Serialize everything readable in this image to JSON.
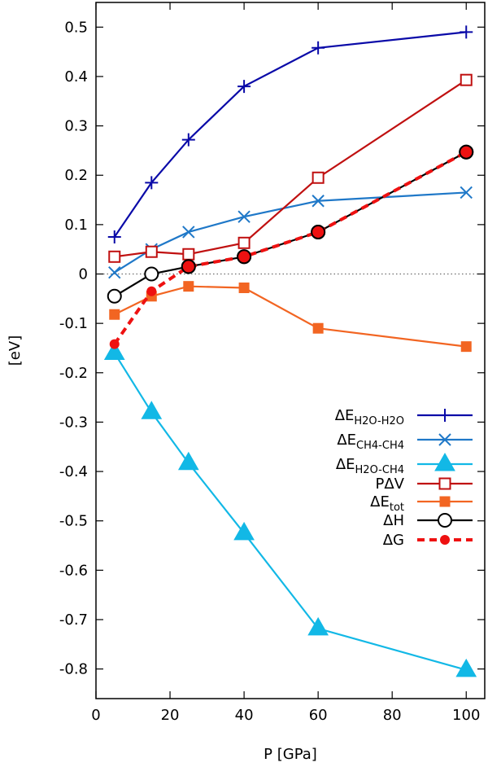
{
  "chart_data": {
    "type": "line",
    "xlabel": "P [GPa]",
    "ylabel": "[eV]",
    "xlim": [
      0,
      105
    ],
    "ylim": [
      -0.86,
      0.55
    ],
    "xticks": [
      0,
      20,
      40,
      60,
      80,
      100
    ],
    "yticks": [
      0.5,
      0.4,
      0.3,
      0.2,
      0.1,
      0,
      -0.1,
      -0.2,
      -0.3,
      -0.4,
      -0.5,
      -0.6,
      -0.7,
      -0.8
    ],
    "xtick_labels": [
      "0",
      "20",
      "40",
      "60",
      "80",
      "100"
    ],
    "ytick_labels": [
      "0.5",
      "0.4",
      "0.3",
      "0.2",
      "0.1",
      "0",
      "-0.1",
      "-0.2",
      "-0.3",
      "-0.4",
      "-0.5",
      "-0.6",
      "-0.7",
      "-0.8"
    ],
    "zero_line": true,
    "grid": false,
    "legend_position": "lower-right",
    "series": [
      {
        "name": "ΔE",
        "sub": "H2O-H2O",
        "color": "#0a0aa8",
        "marker": "plus",
        "dash": false,
        "x": [
          5,
          15,
          25,
          40,
          60,
          100
        ],
        "y": [
          0.075,
          0.185,
          0.272,
          0.38,
          0.458,
          0.49
        ]
      },
      {
        "name": "ΔE",
        "sub": "CH4-CH4",
        "color": "#1f78c8",
        "marker": "cross",
        "dash": false,
        "x": [
          5,
          15,
          25,
          40,
          60,
          100
        ],
        "y": [
          0.003,
          0.05,
          0.085,
          0.116,
          0.148,
          0.165
        ]
      },
      {
        "name": "ΔE",
        "sub": "H2O-CH4",
        "color": "#12b8e6",
        "marker": "triangle",
        "dash": false,
        "x": [
          5,
          15,
          25,
          40,
          60,
          100
        ],
        "y": [
          -0.16,
          -0.28,
          -0.383,
          -0.525,
          -0.718,
          -0.802
        ]
      },
      {
        "name": "PΔV",
        "sub": "",
        "color": "#c01010",
        "marker": "open-square",
        "dash": false,
        "x": [
          5,
          15,
          25,
          40,
          60,
          100
        ],
        "y": [
          0.035,
          0.045,
          0.04,
          0.063,
          0.195,
          0.393
        ]
      },
      {
        "name": "ΔE",
        "sub": "tot",
        "color": "#f26522",
        "marker": "filled-square",
        "dash": false,
        "x": [
          5,
          15,
          25,
          40,
          60,
          100
        ],
        "y": [
          -0.082,
          -0.045,
          -0.025,
          -0.028,
          -0.11,
          -0.147
        ]
      },
      {
        "name": "ΔH",
        "sub": "",
        "color": "#000000",
        "marker": "open-circle",
        "dash": false,
        "x": [
          5,
          15,
          25,
          40,
          60,
          100
        ],
        "y": [
          -0.045,
          0.0,
          0.015,
          0.035,
          0.085,
          0.247
        ]
      },
      {
        "name": "ΔG",
        "sub": "",
        "color": "#ee1111",
        "marker": "filled-circle",
        "dash": true,
        "x": [
          5,
          15,
          25,
          40,
          60,
          100
        ],
        "y": [
          -0.142,
          -0.035,
          0.015,
          0.035,
          0.085,
          0.247
        ]
      }
    ]
  }
}
